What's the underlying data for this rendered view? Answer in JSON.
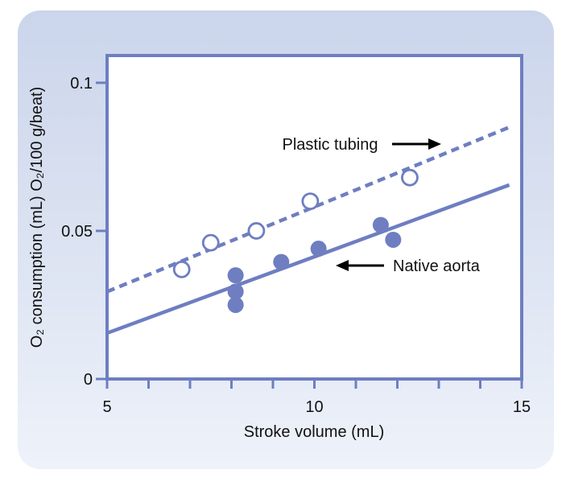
{
  "figure": {
    "accent_color": "#6e7ec1",
    "card_bg_top": "#cbd5eb",
    "card_bg_bottom": "#eef2fa",
    "text_color": "#111111"
  },
  "chart_data": {
    "type": "scatter",
    "title": "",
    "xlabel": "Stroke volume (mL)",
    "ylabel": "O₂ consumption (mL) O₂/100 g/beat)",
    "grid": false,
    "x_axis": {
      "range": [
        5,
        15
      ],
      "minor_ticks": [
        5,
        6,
        7,
        8,
        9,
        10,
        11,
        12,
        13,
        14,
        15
      ],
      "labeled_ticks": [
        {
          "value": 5,
          "label": "5"
        },
        {
          "value": 10,
          "label": "10"
        },
        {
          "value": 15,
          "label": "15"
        }
      ]
    },
    "y_axis": {
      "range": [
        0,
        0.1092
      ],
      "labeled_ticks": [
        {
          "value": 0,
          "label": "0"
        },
        {
          "value": 0.05,
          "label": "0.05"
        },
        {
          "value": 0.1,
          "label": "0.1"
        }
      ]
    },
    "series": [
      {
        "name": "Plastic tubing",
        "marker": "open-circle",
        "line_style": "dashed",
        "points": [
          [
            6.8,
            0.037
          ],
          [
            7.5,
            0.046
          ],
          [
            8.6,
            0.05
          ],
          [
            9.9,
            0.06
          ],
          [
            12.3,
            0.068
          ]
        ],
        "trend_line": {
          "x1": 5,
          "y1": 0.0295,
          "x2": 14.7,
          "y2": 0.085
        }
      },
      {
        "name": "Native aorta",
        "marker": "filled-circle",
        "line_style": "solid",
        "points": [
          [
            8.1,
            0.035
          ],
          [
            8.1,
            0.0295
          ],
          [
            8.1,
            0.025
          ],
          [
            9.2,
            0.0395
          ],
          [
            10.1,
            0.044
          ],
          [
            11.6,
            0.052
          ],
          [
            11.9,
            0.047
          ]
        ],
        "trend_line": {
          "x1": 5,
          "y1": 0.0155,
          "x2": 14.7,
          "y2": 0.0655
        }
      }
    ],
    "annotations": [
      {
        "text": "Plastic tubing",
        "arrow_direction": "right"
      },
      {
        "text": "Native aorta",
        "arrow_direction": "left"
      }
    ]
  }
}
